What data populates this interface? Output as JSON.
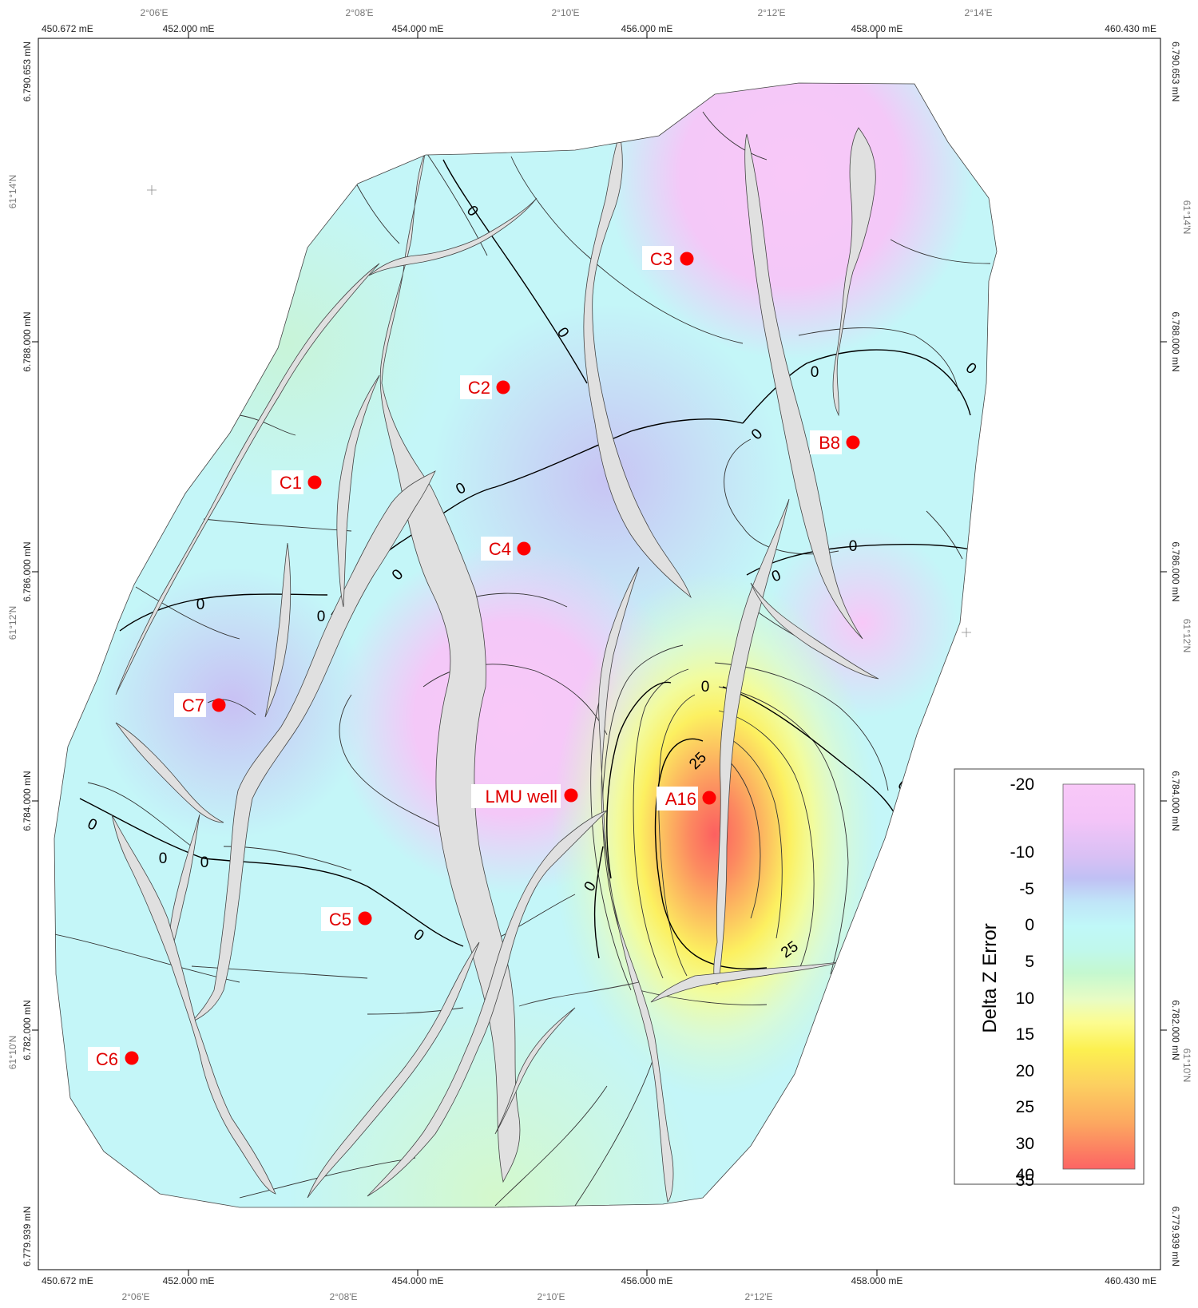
{
  "map": {
    "colors": {
      "fault_fill": "#e0e0e0",
      "well_marker": "#ff0000",
      "well_label": "#e00000",
      "frame": "#000000"
    },
    "easting_labels": [
      "450.672 mE",
      "452.000 mE",
      "454.000 mE",
      "456.000 mE",
      "458.000 mE",
      "460.430 mE"
    ],
    "northing_labels": [
      "6.790.653 mN",
      "6.788.000 mN",
      "6.786.000 mN",
      "6.784.000 mN",
      "6.782.000 mN",
      "6.779.939 mN"
    ],
    "longitude_labels": [
      "2°06'E",
      "2°08'E",
      "2°10'E",
      "2°12'E",
      "2°14'E"
    ],
    "latitude_labels": [
      "61°14'N",
      "61°12'N",
      "61°10'N"
    ],
    "wells": [
      {
        "name": "C3"
      },
      {
        "name": "C2"
      },
      {
        "name": "B8"
      },
      {
        "name": "C1"
      },
      {
        "name": "C4"
      },
      {
        "name": "C7"
      },
      {
        "name": "LMU well"
      },
      {
        "name": "A16"
      },
      {
        "name": "C5"
      },
      {
        "name": "C6"
      }
    ],
    "contour_labels": [
      "0",
      "0",
      "0",
      "0",
      "0",
      "0",
      "0",
      "0",
      "0",
      "0",
      "0",
      "0",
      "0",
      "0",
      "0",
      "0",
      "0",
      "25",
      "25"
    ],
    "legend": {
      "title": "Delta Z Error",
      "ticks": [
        "-20",
        "-10",
        "-5",
        "0",
        "5",
        "10",
        "15",
        "20",
        "25",
        "30",
        "35",
        "40"
      ],
      "color_stops": [
        "#f8c8f8",
        "#dcc0f4",
        "#c0c0f4",
        "#c0e8f8",
        "#c0f8f8",
        "#c0f8e8",
        "#c8f8c8",
        "#f0fcc0",
        "#fcfc60",
        "#fcd060",
        "#fca060",
        "#fc6060"
      ]
    }
  }
}
